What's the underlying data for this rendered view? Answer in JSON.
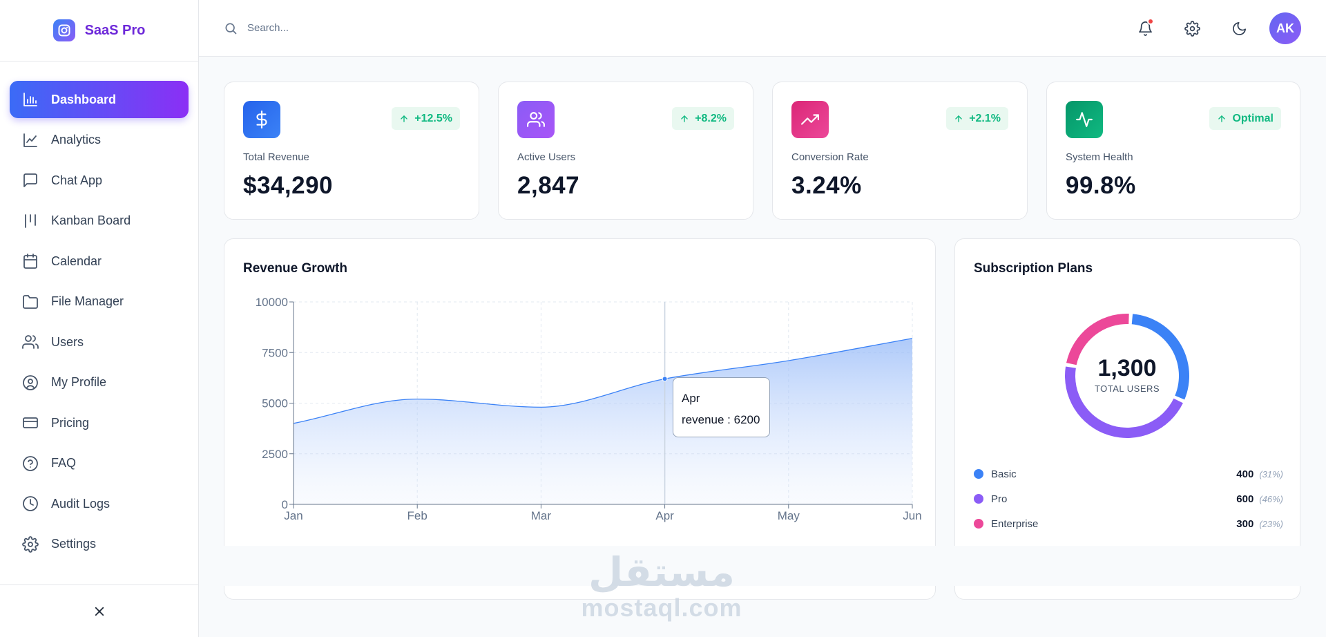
{
  "brand": {
    "name": "SaaS Pro"
  },
  "sidebar": {
    "items": [
      {
        "label": "Dashboard",
        "icon": "bar-chart-icon",
        "active": true
      },
      {
        "label": "Analytics",
        "icon": "line-chart-icon"
      },
      {
        "label": "Chat App",
        "icon": "message-square-icon"
      },
      {
        "label": "Kanban Board",
        "icon": "kanban-icon"
      },
      {
        "label": "Calendar",
        "icon": "calendar-icon"
      },
      {
        "label": "File Manager",
        "icon": "folder-icon"
      },
      {
        "label": "Users",
        "icon": "users-icon"
      },
      {
        "label": "My Profile",
        "icon": "user-circle-icon"
      },
      {
        "label": "Pricing",
        "icon": "credit-card-icon"
      },
      {
        "label": "FAQ",
        "icon": "help-circle-icon"
      },
      {
        "label": "Audit Logs",
        "icon": "clock-icon"
      },
      {
        "label": "Settings",
        "icon": "gear-icon"
      }
    ]
  },
  "header": {
    "search_placeholder": "Search...",
    "avatar_initials": "AK"
  },
  "stats": [
    {
      "label": "Total Revenue",
      "value": "$34,290",
      "badge": "+12.5%",
      "icon": "dollar-icon",
      "color_from": "#2563eb",
      "color_to": "#3b82f6"
    },
    {
      "label": "Active Users",
      "value": "2,847",
      "badge": "+8.2%",
      "icon": "users-icon",
      "color_from": "#8b5cf6",
      "color_to": "#a855f7"
    },
    {
      "label": "Conversion Rate",
      "value": "3.24%",
      "badge": "+2.1%",
      "icon": "trending-up-icon",
      "color_from": "#db2777",
      "color_to": "#ec4899"
    },
    {
      "label": "System Health",
      "value": "99.8%",
      "badge": "Optimal",
      "icon": "activity-icon",
      "color_from": "#059669",
      "color_to": "#10b981"
    }
  ],
  "revenue_panel": {
    "title": "Revenue Growth",
    "tooltip": {
      "category": "Apr",
      "series_label": "revenue",
      "value_text": "6200"
    }
  },
  "subscription_panel": {
    "title": "Subscription Plans",
    "total_value": "1,300",
    "total_label": "TOTAL USERS",
    "legend": [
      {
        "name": "Basic",
        "value": "400",
        "pct": "(31%)",
        "color": "#3b82f6"
      },
      {
        "name": "Pro",
        "value": "600",
        "pct": "(46%)",
        "color": "#8b5cf6"
      },
      {
        "name": "Enterprise",
        "value": "300",
        "pct": "(23%)",
        "color": "#ec4899"
      }
    ]
  },
  "watermark": {
    "arabic": "مستقل",
    "latin": "mostaql.com"
  },
  "chart_data": [
    {
      "type": "area",
      "title": "Revenue Growth",
      "categories": [
        "Jan",
        "Feb",
        "Mar",
        "Apr",
        "May",
        "Jun"
      ],
      "series": [
        {
          "name": "revenue",
          "values": [
            4000,
            5200,
            4800,
            6200,
            7100,
            8200
          ],
          "color": "#3b82f6"
        }
      ],
      "yticks": [
        "0",
        "2500",
        "5000",
        "7500",
        "10000"
      ],
      "ylim": [
        0,
        10000
      ],
      "grid": true,
      "xlabel": "",
      "ylabel": ""
    },
    {
      "type": "pie",
      "title": "Subscription Plans",
      "categories": [
        "Basic",
        "Pro",
        "Enterprise"
      ],
      "values": [
        400,
        600,
        300
      ],
      "colors": [
        "#3b82f6",
        "#8b5cf6",
        "#ec4899"
      ]
    }
  ]
}
